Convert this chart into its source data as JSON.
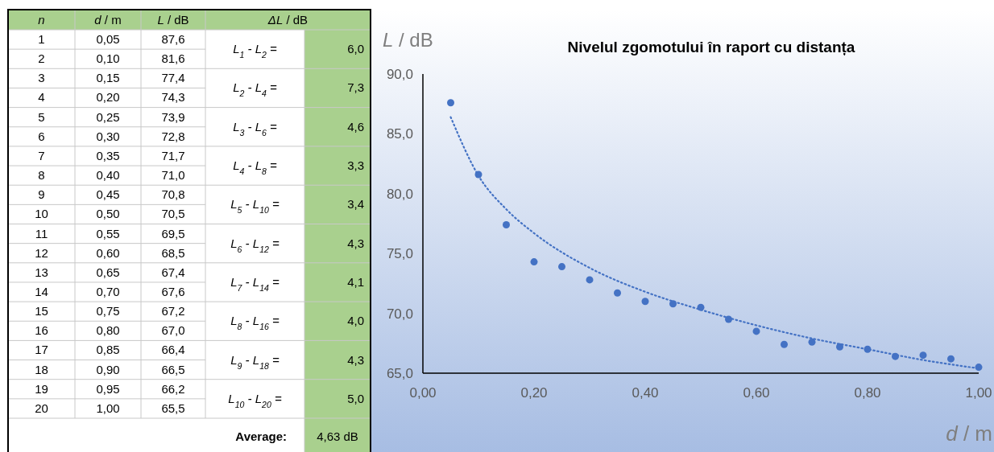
{
  "chart_data": {
    "type": "scatter",
    "title": "Nivelul zgomotului în raport cu distanța",
    "xlabel": "d / m",
    "ylabel": "L / dB",
    "x": [
      0.05,
      0.1,
      0.15,
      0.2,
      0.25,
      0.3,
      0.35,
      0.4,
      0.45,
      0.5,
      0.55,
      0.6,
      0.65,
      0.7,
      0.75,
      0.8,
      0.85,
      0.9,
      0.95,
      1.0
    ],
    "series": [
      {
        "color": "#4472c4",
        "values": [
          87.6,
          81.6,
          77.4,
          74.3,
          73.9,
          72.8,
          71.7,
          71.0,
          70.8,
          70.5,
          69.5,
          68.5,
          67.4,
          67.6,
          67.2,
          67.0,
          66.4,
          66.5,
          66.2,
          65.5
        ]
      },
      {
        "type": "line",
        "color": "#4472c4",
        "line_style": "dotted",
        "marker": "none",
        "x": [
          0.05,
          0.1,
          0.15,
          0.2,
          0.3,
          0.4,
          0.5,
          0.6,
          0.7,
          0.8,
          0.9,
          1.0
        ],
        "values": [
          86.4,
          81.5,
          78.7,
          76.7,
          73.8,
          71.8,
          70.3,
          69.0,
          67.9,
          67.0,
          66.1,
          65.4
        ]
      }
    ],
    "marker": "circle",
    "grid": false,
    "xlim": [
      0,
      1
    ],
    "xticks": [
      {
        "value": 0,
        "label": "0,00"
      },
      {
        "value": 0.2,
        "label": "0,20"
      },
      {
        "value": 0.4,
        "label": "0,40"
      },
      {
        "value": 0.6,
        "label": "0,60"
      },
      {
        "value": 0.8,
        "label": "0,80"
      },
      {
        "value": 1,
        "label": "1,00"
      }
    ],
    "ylim": [
      65,
      90
    ],
    "yticks": [
      {
        "value": 65,
        "label": "65,0"
      },
      {
        "value": 70,
        "label": "70,0"
      },
      {
        "value": 75,
        "label": "75,0"
      },
      {
        "value": 80,
        "label": "80,0"
      },
      {
        "value": 85,
        "label": "85,0"
      },
      {
        "value": 90,
        "label": "90,0"
      }
    ],
    "annotations": [
      "n",
      "d / m",
      "L / dB",
      "ΔL / dB",
      "L$_{1}$ - L$_{2}$ =",
      "6,0",
      "L$_{2}$ - L$_{4}$ =",
      "7,3",
      "L$_{3}$ - L$_{6}$ =",
      "4,6",
      "L$_{4}$ - L$_{8}$ =",
      "3,3",
      "L$_{5}$ - L$_{10}$ =",
      "3,4",
      "L$_{6}$ - L$_{12}$ =",
      "4,3",
      "L$_{7}$ - L$_{14}$ =",
      "4,1",
      "L$_{8}$ - L$_{16}$ =",
      "4,0",
      "L$_{9}$ - L$_{18}$ =",
      "4,3",
      "L$_{10}$ - L$_{20}$ =",
      "5,0",
      "Average:",
      "4,63 dB",
      "1",
      "2",
      "3",
      "4",
      "5",
      "6",
      "7",
      "8",
      "9",
      "10",
      "11",
      "12",
      "13",
      "14",
      "15",
      "16",
      "17",
      "18",
      "19",
      "20",
      "0,05",
      "0,10",
      "0,15",
      "0,20",
      "0,25",
      "0,30",
      "0,35",
      "0,40",
      "0,45",
      "0,50",
      "0,55",
      "0,60",
      "0,65",
      "0,70",
      "0,75",
      "0,80",
      "0,85",
      "0,90",
      "0,95",
      "1,00",
      "87,6",
      "81,6",
      "77,4",
      "74,3",
      "73,9",
      "72,8",
      "71,7",
      "71,0",
      "70,8",
      "70,5",
      "69,5",
      "68,5",
      "67,4",
      "67,6",
      "67,2",
      "67,0",
      "66,4",
      "66,5",
      "66,2",
      "65,5"
    ]
  }
}
